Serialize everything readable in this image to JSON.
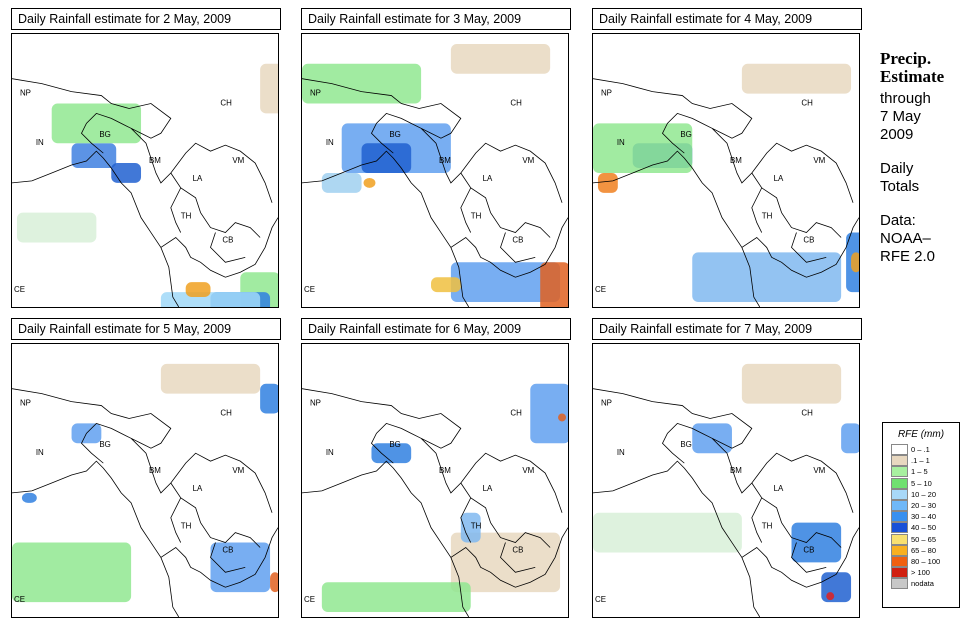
{
  "panels": [
    {
      "title": "Daily Rainfall estimate for  2 May, 2009",
      "rain": [
        [
          60,
          110,
          45,
          25,
          "#4080e0"
        ],
        [
          100,
          130,
          30,
          20,
          "#2060d0"
        ],
        [
          40,
          70,
          90,
          40,
          "#90e890"
        ],
        [
          230,
          240,
          40,
          50,
          "#90e890"
        ],
        [
          200,
          260,
          60,
          20,
          "#3080e0"
        ],
        [
          150,
          260,
          100,
          30,
          "#a0d8f8"
        ],
        [
          175,
          250,
          25,
          15,
          "#f0a020"
        ],
        [
          5,
          180,
          80,
          30,
          "#d8f0d8"
        ],
        [
          250,
          30,
          30,
          50,
          "#e8d8c0"
        ]
      ]
    },
    {
      "title": "Daily Rainfall estimate for  3 May, 2009",
      "rain": [
        [
          40,
          90,
          110,
          50,
          "#60a0f0"
        ],
        [
          60,
          110,
          50,
          30,
          "#2060d0"
        ],
        [
          62,
          145,
          12,
          10,
          "#f0a020"
        ],
        [
          20,
          140,
          40,
          20,
          "#a0d0f0"
        ],
        [
          150,
          230,
          110,
          40,
          "#60a0f0"
        ],
        [
          130,
          245,
          30,
          15,
          "#f0c040"
        ],
        [
          240,
          230,
          30,
          50,
          "#e06020"
        ],
        [
          0,
          30,
          120,
          40,
          "#90e890"
        ],
        [
          150,
          10,
          100,
          30,
          "#e8d8c0"
        ]
      ]
    },
    {
      "title": "Daily Rainfall estimate for  4 May, 2009",
      "rain": [
        [
          40,
          110,
          60,
          25,
          "#2060d0"
        ],
        [
          5,
          140,
          20,
          20,
          "#f08020"
        ],
        [
          0,
          90,
          100,
          50,
          "#90e890"
        ],
        [
          100,
          220,
          150,
          50,
          "#80b8f0"
        ],
        [
          255,
          200,
          20,
          60,
          "#3080e0"
        ],
        [
          260,
          220,
          10,
          20,
          "#f0a020"
        ],
        [
          150,
          30,
          110,
          30,
          "#e8d8c0"
        ]
      ]
    },
    {
      "title": "Daily Rainfall estimate for  5 May, 2009",
      "rain": [
        [
          60,
          80,
          30,
          20,
          "#60a0f0"
        ],
        [
          250,
          40,
          20,
          30,
          "#3080e0"
        ],
        [
          0,
          200,
          120,
          60,
          "#90e890"
        ],
        [
          200,
          200,
          60,
          50,
          "#60a0f0"
        ],
        [
          260,
          230,
          10,
          20,
          "#e06020"
        ],
        [
          150,
          20,
          100,
          30,
          "#e8d8c0"
        ],
        [
          10,
          150,
          15,
          10,
          "#3080e0"
        ]
      ]
    },
    {
      "title": "Daily Rainfall estimate for  6 May, 2009",
      "rain": [
        [
          70,
          100,
          40,
          20,
          "#3080e0"
        ],
        [
          230,
          40,
          40,
          60,
          "#60a0f0"
        ],
        [
          258,
          70,
          8,
          8,
          "#e06020"
        ],
        [
          150,
          190,
          110,
          60,
          "#e8d8c0"
        ],
        [
          20,
          240,
          150,
          30,
          "#90e890"
        ],
        [
          160,
          170,
          20,
          30,
          "#80b8f0"
        ]
      ]
    },
    {
      "title": "Daily Rainfall estimate for  7 May, 2009",
      "rain": [
        [
          100,
          80,
          40,
          30,
          "#60a0f0"
        ],
        [
          200,
          180,
          50,
          40,
          "#3080e0"
        ],
        [
          230,
          230,
          30,
          30,
          "#2060d0"
        ],
        [
          235,
          250,
          8,
          8,
          "#e02020"
        ],
        [
          250,
          80,
          20,
          30,
          "#60a0f0"
        ],
        [
          0,
          170,
          150,
          40,
          "#d8f0d8"
        ],
        [
          150,
          20,
          100,
          40,
          "#e8d8c0"
        ]
      ]
    }
  ],
  "labels": {
    "np": "NP",
    "in": "IN",
    "bg": "BG",
    "ch": "CH",
    "bm": "BM",
    "vm": "VM",
    "la": "LA",
    "th": "TH",
    "cb": "CB",
    "ce": "CE"
  },
  "sidebar": {
    "title1": "Precip.",
    "title2": "Estimate",
    "l1": "through",
    "l2": "7 May",
    "l3": "2009",
    "l4": "Daily",
    "l5": "Totals",
    "l6": "Data:",
    "l7": "NOAA–",
    "l8": "RFE 2.0"
  },
  "legend": {
    "title": "RFE (mm)",
    "items": [
      {
        "label": "0 – .1",
        "color": "#ffffff"
      },
      {
        "label": ".1 – 1",
        "color": "#e8d8c0"
      },
      {
        "label": "1 – 5",
        "color": "#a8f0a0"
      },
      {
        "label": "5 – 10",
        "color": "#70e070"
      },
      {
        "label": "10 – 20",
        "color": "#a8d8f8"
      },
      {
        "label": "20 – 30",
        "color": "#70b8f8"
      },
      {
        "label": "30 – 40",
        "color": "#3890f0"
      },
      {
        "label": "40 – 50",
        "color": "#1850d8"
      },
      {
        "label": "50 – 65",
        "color": "#f8e070"
      },
      {
        "label": "65 – 80",
        "color": "#f8b020"
      },
      {
        "label": "80 – 100",
        "color": "#f06010"
      },
      {
        "label": "> 100",
        "color": "#d02010"
      },
      {
        "label": "nodata",
        "color": "#c8c8c8"
      }
    ]
  }
}
